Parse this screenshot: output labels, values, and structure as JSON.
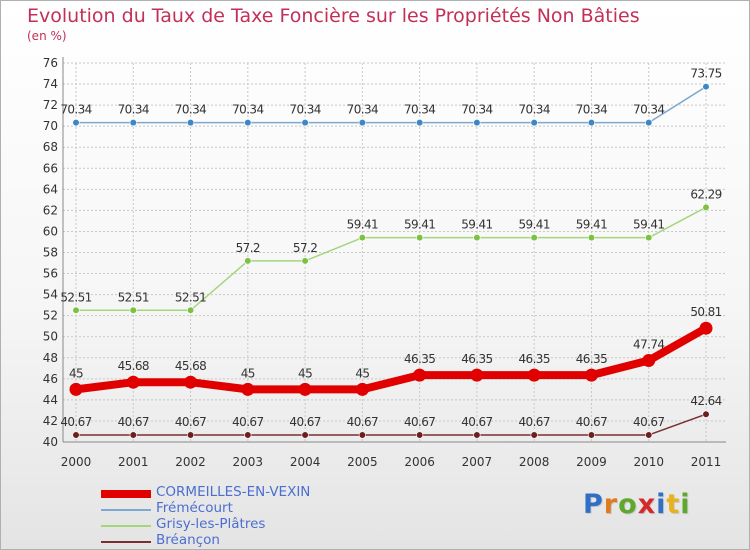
{
  "title": "Evolution du Taux de Taxe Foncière sur les Propriétés Non Bâties",
  "unit_label": "(en %)",
  "brand": "Proxiti",
  "colors": {
    "title": "#c2305a",
    "axis": "#888888",
    "grid": "#c8c8c8",
    "tick_text": "#333333",
    "value_text": "#333333",
    "brand_letters": [
      "#2f6fc5",
      "#e07a1f",
      "#5fa82d",
      "#d6292a",
      "#2f6fc5",
      "#e6b21d",
      "#5fa82d"
    ]
  },
  "chart_data": {
    "type": "line",
    "title": "Evolution du Taux de Taxe Foncière sur les Propriétés Non Bâties",
    "ylabel": "(en %)",
    "xlabel": "",
    "ylim": [
      40,
      76
    ],
    "ytick_step": 2,
    "grid": true,
    "legend_position": "bottom-left",
    "x": [
      "2000",
      "2001",
      "2002",
      "2003",
      "2004",
      "2005",
      "2006",
      "2007",
      "2008",
      "2009",
      "2010",
      "2011"
    ],
    "series": [
      {
        "name": "CORMEILLES-EN-VEXIN",
        "color": "#e00000",
        "emphasis": true,
        "values": [
          45,
          45.68,
          45.68,
          45,
          45,
          45,
          46.35,
          46.35,
          46.35,
          46.35,
          47.74,
          50.81
        ],
        "labels": [
          "45",
          "45.68",
          "45.68",
          "45",
          "45",
          "45",
          "46.35",
          "46.35",
          "46.35",
          "46.35",
          "47.74",
          "50.81"
        ]
      },
      {
        "name": "Frémécourt",
        "color": "#7ea8cf",
        "marker_color": "#3b87c7",
        "emphasis": false,
        "values": [
          70.34,
          70.34,
          70.34,
          70.34,
          70.34,
          70.34,
          70.34,
          70.34,
          70.34,
          70.34,
          70.34,
          73.75
        ],
        "labels": [
          "70.34",
          "70.34",
          "70.34",
          "70.34",
          "70.34",
          "70.34",
          "70.34",
          "70.34",
          "70.34",
          "70.34",
          "70.34",
          "73.75"
        ]
      },
      {
        "name": "Grisy-les-Plâtres",
        "color": "#a4d67e",
        "marker_color": "#7cc242",
        "emphasis": false,
        "values": [
          52.51,
          52.51,
          52.51,
          57.2,
          57.2,
          59.41,
          59.41,
          59.41,
          59.41,
          59.41,
          59.41,
          62.29
        ],
        "labels": [
          "52.51",
          "52.51",
          "52.51",
          "57.2",
          "57.2",
          "59.41",
          "59.41",
          "59.41",
          "59.41",
          "59.41",
          "59.41",
          "62.29"
        ]
      },
      {
        "name": "Bréançon",
        "color": "#7a2e2e",
        "marker_color": "#6b1f1f",
        "emphasis": false,
        "values": [
          40.67,
          40.67,
          40.67,
          40.67,
          40.67,
          40.67,
          40.67,
          40.67,
          40.67,
          40.67,
          40.67,
          42.64
        ],
        "labels": [
          "40.67",
          "40.67",
          "40.67",
          "40.67",
          "40.67",
          "40.67",
          "40.67",
          "40.67",
          "40.67",
          "40.67",
          "40.67",
          "42.64"
        ]
      }
    ]
  }
}
